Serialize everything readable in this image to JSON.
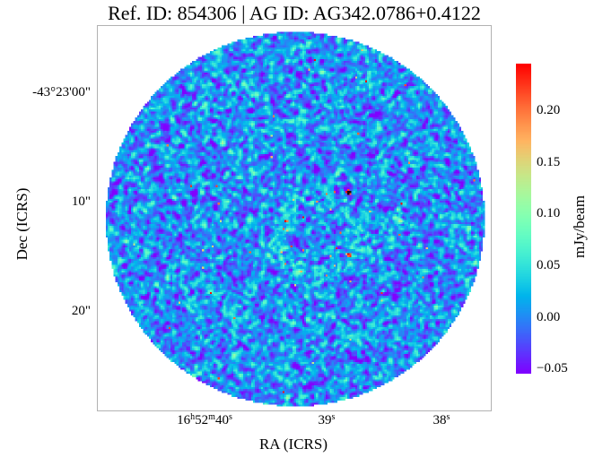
{
  "figure": {
    "title": "Ref. ID: 854306 | AG ID: AG342.0786+0.4122"
  },
  "x_axis": {
    "label": "RA (ICRS)",
    "ticks": [
      {
        "p1": "16",
        "s1": "h",
        "p2": "52",
        "s2": "m",
        "p3": "40",
        "s3": "s"
      },
      {
        "p1": "39",
        "s1": "s"
      },
      {
        "p1": "38",
        "s1": "s"
      }
    ]
  },
  "y_axis": {
    "label": "Dec (ICRS)",
    "ticks": [
      "-43°23'00\"",
      "10\"",
      "20\""
    ]
  },
  "colorbar": {
    "label": "mJy/beam",
    "ticks": [
      "0.20",
      "0.15",
      "0.10",
      "0.05",
      "0.00",
      "−0.05"
    ]
  },
  "chart_data": {
    "type": "heatmap",
    "title": "Ref. ID: 854306 | AG ID: AG342.0786+0.4122",
    "xlabel": "RA (ICRS)",
    "ylabel": "Dec (ICRS)",
    "x_tick_labels": [
      "16h52m40s",
      "39s",
      "38s"
    ],
    "y_tick_labels": [
      "-43°23'00\"",
      "10\"",
      "20\""
    ],
    "colorbar_label": "mJy/beam",
    "colorbar_ticks": [
      0.2,
      0.15,
      0.1,
      0.05,
      0.0,
      -0.05
    ],
    "value_range": [
      -0.055,
      0.245
    ],
    "colormap": "rainbow",
    "field_shape": "circular aperture on white background",
    "content": "radio interferometric noise speckle, mean ≈ 0 mJy/beam, σ ≈ 0.033 mJy/beam, beam-correlated blobs",
    "features": [
      {
        "desc": "faint extended ring of elevated emission near field center",
        "cx_frac": 0.558,
        "cy_frac": 0.545,
        "r_frac": 0.1
      },
      {
        "desc": "bright orange compact spot",
        "cx_frac": 0.635,
        "cy_frac": 0.595
      },
      {
        "desc": "dark saturated compact spot with red rim",
        "cx_frac": 0.635,
        "cy_frac": 0.43
      }
    ]
  }
}
